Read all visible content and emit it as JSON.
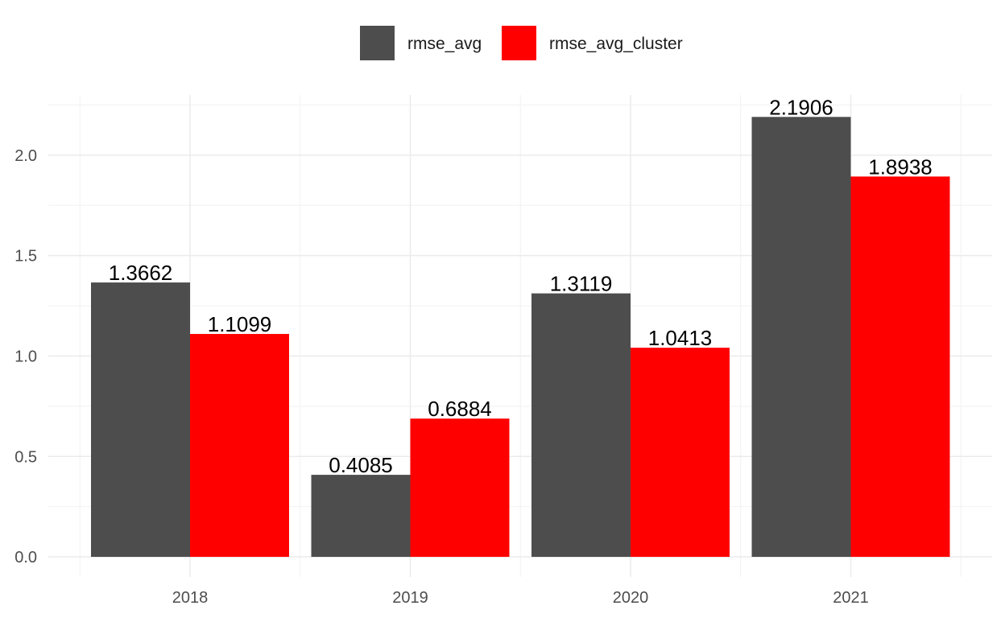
{
  "chart_data": {
    "type": "bar",
    "title": "",
    "xlabel": "",
    "ylabel": "",
    "categories": [
      "2018",
      "2019",
      "2020",
      "2021"
    ],
    "series": [
      {
        "name": "rmse_avg",
        "color": "#4d4d4d",
        "values": [
          1.3662,
          0.4085,
          1.3119,
          2.1906
        ],
        "labels": [
          "1.3662",
          "0.4085",
          "1.3119",
          "2.1906"
        ]
      },
      {
        "name": "rmse_avg_cluster",
        "color": "#ff0000",
        "values": [
          1.1099,
          0.6884,
          1.0413,
          1.8938
        ],
        "labels": [
          "1.1099",
          "0.6884",
          "1.0413",
          "1.8938"
        ]
      }
    ],
    "ylim": [
      -0.1,
      2.3
    ],
    "yticks": [
      0.0,
      0.5,
      1.0,
      1.5,
      2.0
    ],
    "ytick_labels": [
      "0.0",
      "0.5",
      "1.0",
      "1.5",
      "2.0"
    ],
    "grid": true,
    "legend_position": "top"
  }
}
